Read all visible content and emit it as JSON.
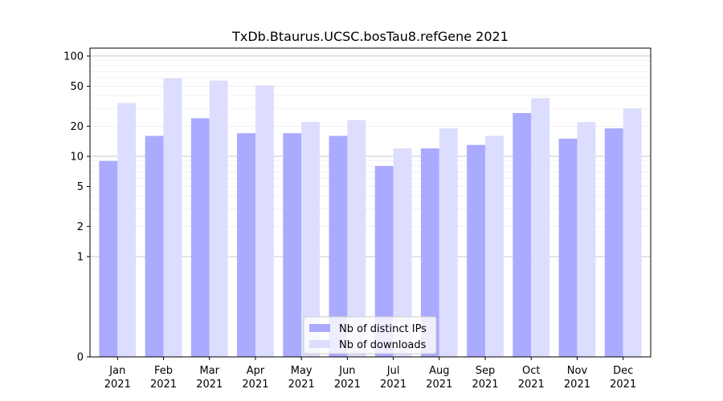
{
  "chart_data": {
    "type": "bar",
    "title": "TxDb.Btaurus.UCSC.bosTau8.refGene 2021",
    "xlabel": "",
    "ylabel": "",
    "yscale": "symlog",
    "ylim": [
      0,
      120
    ],
    "yticks": [
      0,
      1,
      2,
      5,
      10,
      20,
      50,
      100
    ],
    "ytick_labels": [
      "0",
      "1",
      "2",
      "5",
      "10",
      "20",
      "50",
      "100"
    ],
    "categories": [
      "Jan",
      "Feb",
      "Mar",
      "Apr",
      "May",
      "Jun",
      "Jul",
      "Aug",
      "Sep",
      "Oct",
      "Nov",
      "Dec"
    ],
    "category_years": [
      "2021",
      "2021",
      "2021",
      "2021",
      "2021",
      "2021",
      "2021",
      "2021",
      "2021",
      "2021",
      "2021",
      "2021"
    ],
    "series": [
      {
        "name": "Nb of distinct IPs",
        "color": "#aaaaff",
        "values": [
          9,
          16,
          24,
          17,
          17,
          16,
          8,
          12,
          13,
          27,
          15,
          19
        ]
      },
      {
        "name": "Nb of downloads",
        "color": "#ddddff",
        "values": [
          34,
          60,
          57,
          51,
          22,
          23,
          12,
          19,
          16,
          38,
          22,
          30
        ]
      }
    ],
    "legend": "lower-center",
    "grid": true
  }
}
